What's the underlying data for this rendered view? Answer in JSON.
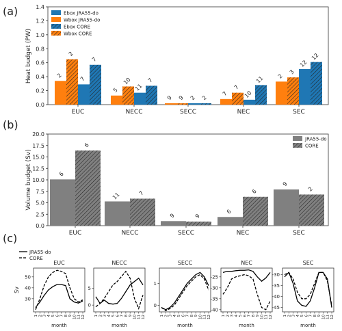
{
  "colors": {
    "orange": "#ff7f0e",
    "blue": "#1f77b4",
    "gray": "#808080",
    "axis": "#333333"
  },
  "chart_data": [
    {
      "id": "a",
      "panel_label": "(a)",
      "type": "bar",
      "ylabel": "Heat budget (PW)",
      "ylim": [
        0,
        1.4
      ],
      "yticks": [
        0.0,
        0.2,
        0.4,
        0.6,
        0.8,
        1.0,
        1.2,
        1.4
      ],
      "categories": [
        "EUC",
        "NECC",
        "SECC",
        "NEC",
        "SEC"
      ],
      "legend_position": "top-left",
      "series": [
        {
          "name": "Ebox JRA55-do",
          "color": "#1f77b4",
          "hatch": false,
          "values": [
            0.29,
            0.17,
            0.02,
            0.07,
            0.51
          ],
          "labels": [
            "7",
            "11",
            "2",
            "10",
            "12"
          ]
        },
        {
          "name": "Wbox JRA55-do",
          "color": "#ff7f0e",
          "hatch": false,
          "values": [
            0.34,
            0.13,
            0.02,
            0.08,
            0.33
          ],
          "labels": [
            "2",
            "5",
            "9",
            "7",
            "2"
          ]
        },
        {
          "name": "Ebox CORE",
          "color": "#1f77b4",
          "hatch": true,
          "values": [
            0.57,
            0.27,
            0.02,
            0.28,
            0.61
          ],
          "labels": [
            "7",
            "7",
            "2",
            "11",
            "12"
          ]
        },
        {
          "name": "Wbox CORE",
          "color": "#ff7f0e",
          "hatch": true,
          "values": [
            0.65,
            0.26,
            0.02,
            0.17,
            0.39
          ],
          "labels": [
            "2",
            "10",
            "9",
            "7",
            "3"
          ]
        }
      ],
      "bar_order": [
        "Wbox JRA55-do",
        "Wbox CORE",
        "Ebox JRA55-do",
        "Ebox CORE"
      ],
      "legend_order": [
        "Ebox JRA55-do",
        "Wbox JRA55-do",
        "Ebox CORE",
        "Wbox CORE"
      ]
    },
    {
      "id": "b",
      "panel_label": "(b)",
      "type": "bar",
      "ylabel": "Volume budget (Sv)",
      "ylim": [
        0,
        20
      ],
      "yticks": [
        0.0,
        2.5,
        5.0,
        7.5,
        10.0,
        12.5,
        15.0,
        17.5,
        20.0
      ],
      "categories": [
        "EUC",
        "NECC",
        "SECC",
        "NEC",
        "SEC"
      ],
      "legend_position": "top-right",
      "series": [
        {
          "name": "JRA55-do",
          "color": "#808080",
          "hatch": false,
          "values": [
            10.1,
            5.3,
            1.0,
            1.9,
            7.9
          ],
          "labels": [
            "6",
            "11",
            "9",
            "6",
            "9"
          ]
        },
        {
          "name": "CORE",
          "color": "#808080",
          "hatch": true,
          "values": [
            16.4,
            5.9,
            0.9,
            6.3,
            6.8
          ],
          "labels": [
            "6",
            "7",
            "9",
            "6",
            "2"
          ]
        }
      ]
    },
    {
      "id": "c",
      "panel_label": "(c)",
      "type": "line",
      "legend": [
        "JRA55-do",
        "CORE"
      ],
      "xlabel": "month",
      "ylabel": "Sv",
      "months": [
        1,
        2,
        3,
        4,
        5,
        6,
        7,
        8,
        9,
        10,
        11,
        12
      ],
      "subplots": [
        {
          "title": "EUC",
          "ylim": [
            18,
            58
          ],
          "yticks": [
            30,
            40,
            50
          ],
          "jra": [
            22,
            27,
            33,
            38,
            41,
            43,
            43,
            42,
            30,
            27,
            26,
            28
          ],
          "core": [
            20,
            30,
            42,
            50,
            54,
            56,
            55,
            53,
            40,
            30,
            27,
            29
          ]
        },
        {
          "title": "NECC",
          "ylim": [
            -2,
            11
          ],
          "yticks": [
            0,
            5
          ],
          "jra": [
            2.5,
            0.5,
            1.5,
            0.5,
            0.3,
            0.5,
            2.0,
            4.0,
            6.0,
            7.0,
            8.0,
            6.0
          ],
          "core": [
            -0.5,
            0.5,
            2.0,
            4.0,
            6.0,
            7.0,
            8.5,
            10.0,
            8.0,
            2.0,
            -1.0,
            3.0
          ]
        },
        {
          "title": "SECC",
          "ylim": [
            -0.3,
            1.7
          ],
          "yticks": [
            0,
            1
          ],
          "jra": [
            -0.1,
            -0.2,
            -0.1,
            0.1,
            0.4,
            0.7,
            1.0,
            1.2,
            1.4,
            1.5,
            1.3,
            0.9
          ],
          "core": [
            -0.1,
            -0.25,
            -0.15,
            0.0,
            0.3,
            0.6,
            0.9,
            1.1,
            1.3,
            1.4,
            1.2,
            0.7
          ]
        },
        {
          "title": "NEC",
          "ylim": [
            -41,
            -21
          ],
          "yticks": [
            -40,
            -35,
            -30,
            -25
          ],
          "jra": [
            -23,
            -22.5,
            -22.5,
            -22.2,
            -22,
            -22,
            -21.8,
            -22.5,
            -25,
            -27,
            -25.5,
            -23
          ],
          "core": [
            -33,
            -30,
            -26,
            -25,
            -24.5,
            -24,
            -24.5,
            -26,
            -33,
            -39,
            -40,
            -36
          ]
        },
        {
          "title": "SEC",
          "ylim": [
            -47,
            -27
          ],
          "yticks": [
            -45,
            -40,
            -35,
            -30
          ],
          "jra": [
            -31,
            -29,
            -34,
            -42,
            -44,
            -44.5,
            -42,
            -36,
            -29,
            -29,
            -32,
            -45
          ],
          "core": [
            -30,
            -29,
            -32,
            -38,
            -41,
            -41,
            -39,
            -34,
            -29,
            -29,
            -33,
            -44
          ]
        }
      ]
    }
  ]
}
